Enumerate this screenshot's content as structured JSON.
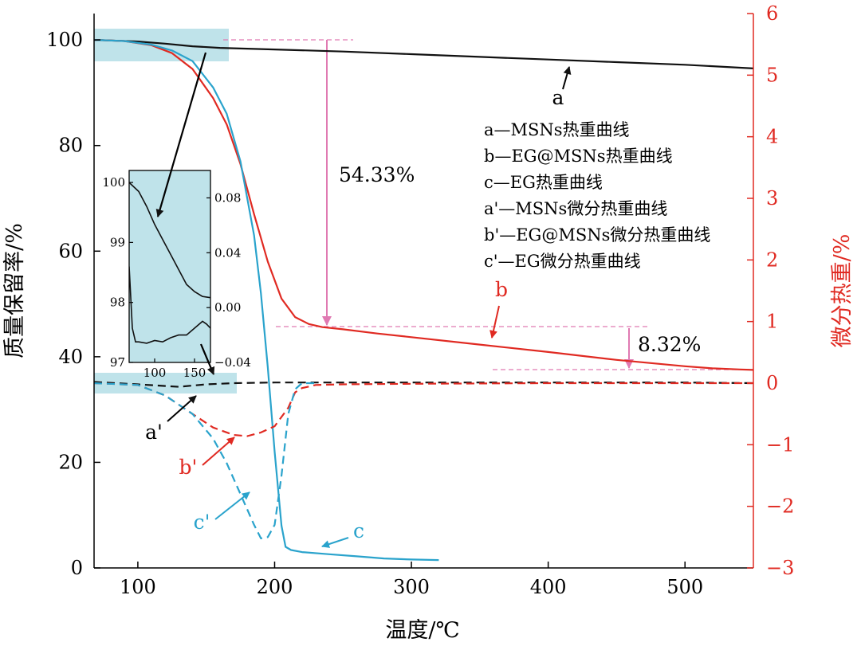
{
  "chart_data": {
    "type": "line",
    "xlabel": "温度/℃",
    "ylabel_left": "质量保留率/%",
    "ylabel_right": "微分热重/%",
    "xlim": [
      68,
      550
    ],
    "ylim_left": [
      0,
      105
    ],
    "ylim_right": [
      -3,
      6
    ],
    "x_ticks": [
      100,
      200,
      300,
      400,
      500
    ],
    "y_ticks_left": [
      0,
      20,
      40,
      60,
      80,
      100
    ],
    "y_ticks_right": [
      -3,
      -2,
      -1,
      0,
      1,
      2,
      3,
      4,
      5,
      6
    ],
    "colors": {
      "a": "#111111",
      "b": "#e02a22",
      "c": "#2aa3cc",
      "right_axis": "#e02a22",
      "arrow_pink": "#e07ab2",
      "highlight": "#bfe3ea"
    },
    "series": [
      {
        "name": "a",
        "axis": "left",
        "style": "solid",
        "x": [
          68,
          80,
          100,
          120,
          140,
          160,
          200,
          250,
          300,
          350,
          400,
          450,
          500,
          550
        ],
        "y": [
          100,
          99.9,
          99.7,
          99.3,
          98.8,
          98.5,
          98.2,
          97.8,
          97.3,
          96.8,
          96.3,
          95.8,
          95.3,
          94.6
        ]
      },
      {
        "name": "b",
        "axis": "left",
        "style": "solid",
        "x": [
          68,
          90,
          110,
          125,
          140,
          155,
          165,
          175,
          185,
          195,
          205,
          215,
          225,
          235,
          250,
          275,
          300,
          350,
          400,
          450,
          500,
          520,
          540,
          550
        ],
        "y": [
          100,
          99.8,
          99,
          97.5,
          94.5,
          89,
          84,
          76.5,
          67,
          58,
          51,
          47.5,
          46.2,
          45.6,
          45.2,
          44.4,
          43.7,
          42.3,
          40.9,
          39.4,
          38.2,
          37.8,
          37.6,
          37.5
        ]
      },
      {
        "name": "c",
        "axis": "left",
        "style": "solid",
        "x": [
          68,
          90,
          110,
          125,
          140,
          155,
          165,
          175,
          185,
          190,
          195,
          200,
          205,
          208,
          212,
          220,
          240,
          260,
          280,
          300,
          320
        ],
        "y": [
          100,
          99.8,
          99.1,
          98,
          96,
          91,
          86,
          77,
          63,
          52,
          38,
          22,
          8,
          4,
          3.4,
          3,
          2.6,
          2.2,
          1.8,
          1.6,
          1.5
        ]
      },
      {
        "name": "a'",
        "axis": "right",
        "style": "dashed",
        "x": [
          68,
          100,
          130,
          150,
          170,
          200,
          250,
          300,
          400,
          500,
          550
        ],
        "y": [
          0.02,
          -0.02,
          -0.06,
          -0.02,
          0.0,
          0.01,
          0.01,
          0.01,
          0.01,
          0.01,
          0.0
        ]
      },
      {
        "name": "b'",
        "axis": "right",
        "style": "dashed",
        "x": [
          68,
          100,
          120,
          140,
          155,
          170,
          180,
          190,
          200,
          210,
          215,
          220,
          230,
          250,
          300,
          400,
          500,
          550
        ],
        "y": [
          0.0,
          -0.03,
          -0.2,
          -0.5,
          -0.72,
          -0.84,
          -0.86,
          -0.8,
          -0.7,
          -0.4,
          -0.15,
          -0.08,
          -0.03,
          -0.02,
          -0.01,
          0.0,
          0.0,
          0.0
        ]
      },
      {
        "name": "c'",
        "axis": "right",
        "style": "dashed",
        "x": [
          68,
          100,
          120,
          140,
          155,
          165,
          175,
          185,
          190,
          195,
          200,
          205,
          210,
          215,
          220,
          230
        ],
        "y": [
          0.0,
          -0.03,
          -0.2,
          -0.5,
          -0.9,
          -1.3,
          -1.8,
          -2.3,
          -2.52,
          -2.5,
          -2.3,
          -1.5,
          -0.5,
          -0.1,
          0.0,
          0.0
        ]
      }
    ],
    "inset": {
      "xlim": [
        68,
        170
      ],
      "ylim_left": [
        97,
        100.2
      ],
      "ylim_right": [
        -0.04,
        0.1
      ],
      "x_ticks": [
        100,
        150
      ],
      "y_ticks_left": [
        97,
        98,
        99,
        100
      ],
      "y_ticks_right": [
        -0.04,
        0.0,
        0.04,
        0.08
      ],
      "x_tick_labels": [
        "100",
        "150"
      ],
      "y_tick_labels_left": [
        "97",
        "98",
        "99",
        "100"
      ],
      "y_tick_labels_right": [
        "−0.04",
        "0.00",
        "0.04",
        "0.08"
      ],
      "tg": {
        "x": [
          68,
          80,
          90,
          100,
          110,
          120,
          130,
          140,
          150,
          160,
          170
        ],
        "y": [
          100,
          99.85,
          99.6,
          99.3,
          99.05,
          98.8,
          98.55,
          98.3,
          98.18,
          98.1,
          98.08
        ]
      },
      "dtg": {
        "x": [
          68,
          72,
          76,
          80,
          90,
          100,
          110,
          120,
          130,
          140,
          150,
          160,
          165,
          170
        ],
        "y": [
          0.03,
          -0.015,
          -0.025,
          -0.025,
          -0.026,
          -0.024,
          -0.025,
          -0.022,
          -0.02,
          -0.02,
          -0.015,
          -0.01,
          -0.012,
          -0.015
        ]
      }
    },
    "legend": [
      "a—MSNs热重曲线",
      "b—EG@MSNs热重曲线",
      "c—EG热重曲线",
      "a'—MSNs微分热重曲线",
      "b'—EG@MSNs微分热重曲线",
      "c'—EG微分热重曲线"
    ],
    "annotations": {
      "loss1": "54.33%",
      "loss2": "8.32%",
      "label_a": "a",
      "label_b": "b",
      "label_c": "c",
      "label_a_prime": "a'",
      "label_b_prime": "b'",
      "label_c_prime": "c'"
    }
  }
}
